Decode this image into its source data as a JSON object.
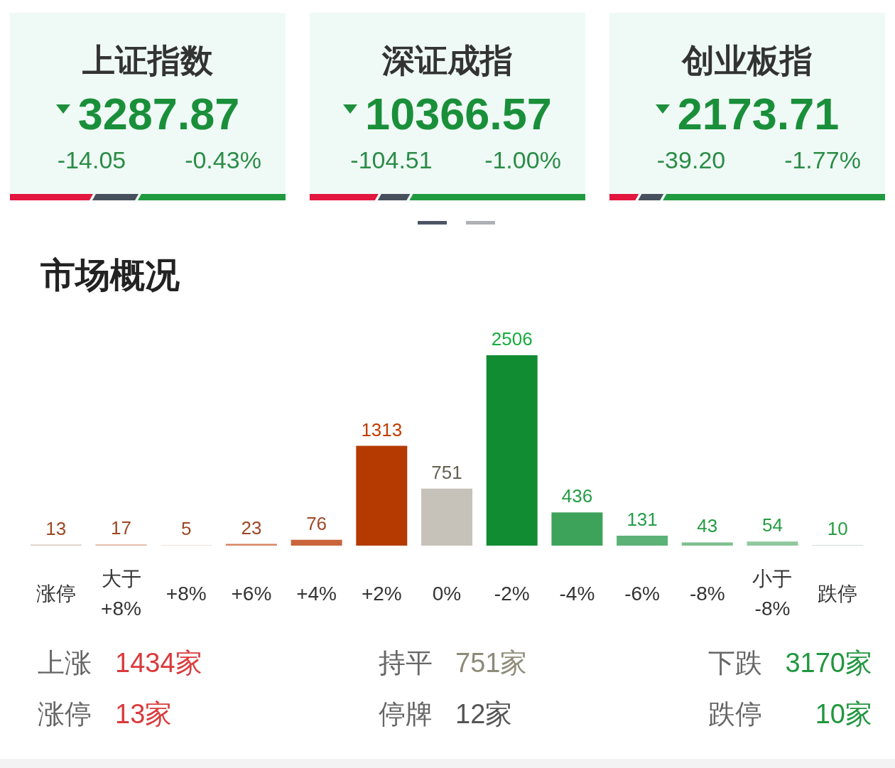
{
  "chart_data": [
    {
      "type": "other",
      "title": "上证指数",
      "annotations": [
        "3287.87",
        "-14.05",
        "-0.43%"
      ]
    },
    {
      "type": "other",
      "title": "深证成指",
      "annotations": [
        "10366.57",
        "-104.51",
        "-1.00%"
      ]
    },
    {
      "type": "other",
      "title": "创业板指",
      "annotations": [
        "2173.71",
        "-39.20",
        "-1.77%"
      ]
    },
    {
      "type": "bar",
      "title": "市场概况",
      "categories": [
        "涨停",
        "大于 +8%",
        "+8%",
        "+6%",
        "+4%",
        "+2%",
        "0%",
        "-2%",
        "-4%",
        "-6%",
        "-8%",
        "小于 -8%",
        "跌停"
      ],
      "values": [
        13,
        17,
        5,
        23,
        76,
        1313,
        751,
        2506,
        436,
        131,
        43,
        54,
        10
      ],
      "colors": [
        "#dcc6bd",
        "#e2b4a2",
        "#dcc9c2",
        "#d88462",
        "#c9643b",
        "#b53a02",
        "#c6c2b9",
        "#128c32",
        "#3ea35a",
        "#5cb276",
        "#7ebf8f",
        "#8fc89d",
        "#cfe0d3"
      ],
      "data_labels": true,
      "annotations": [
        "上涨 1434家",
        "持平 751家",
        "下跌 3170家",
        "涨停 13家",
        "停牌 12家",
        "跌停 10家"
      ]
    }
  ]
}
